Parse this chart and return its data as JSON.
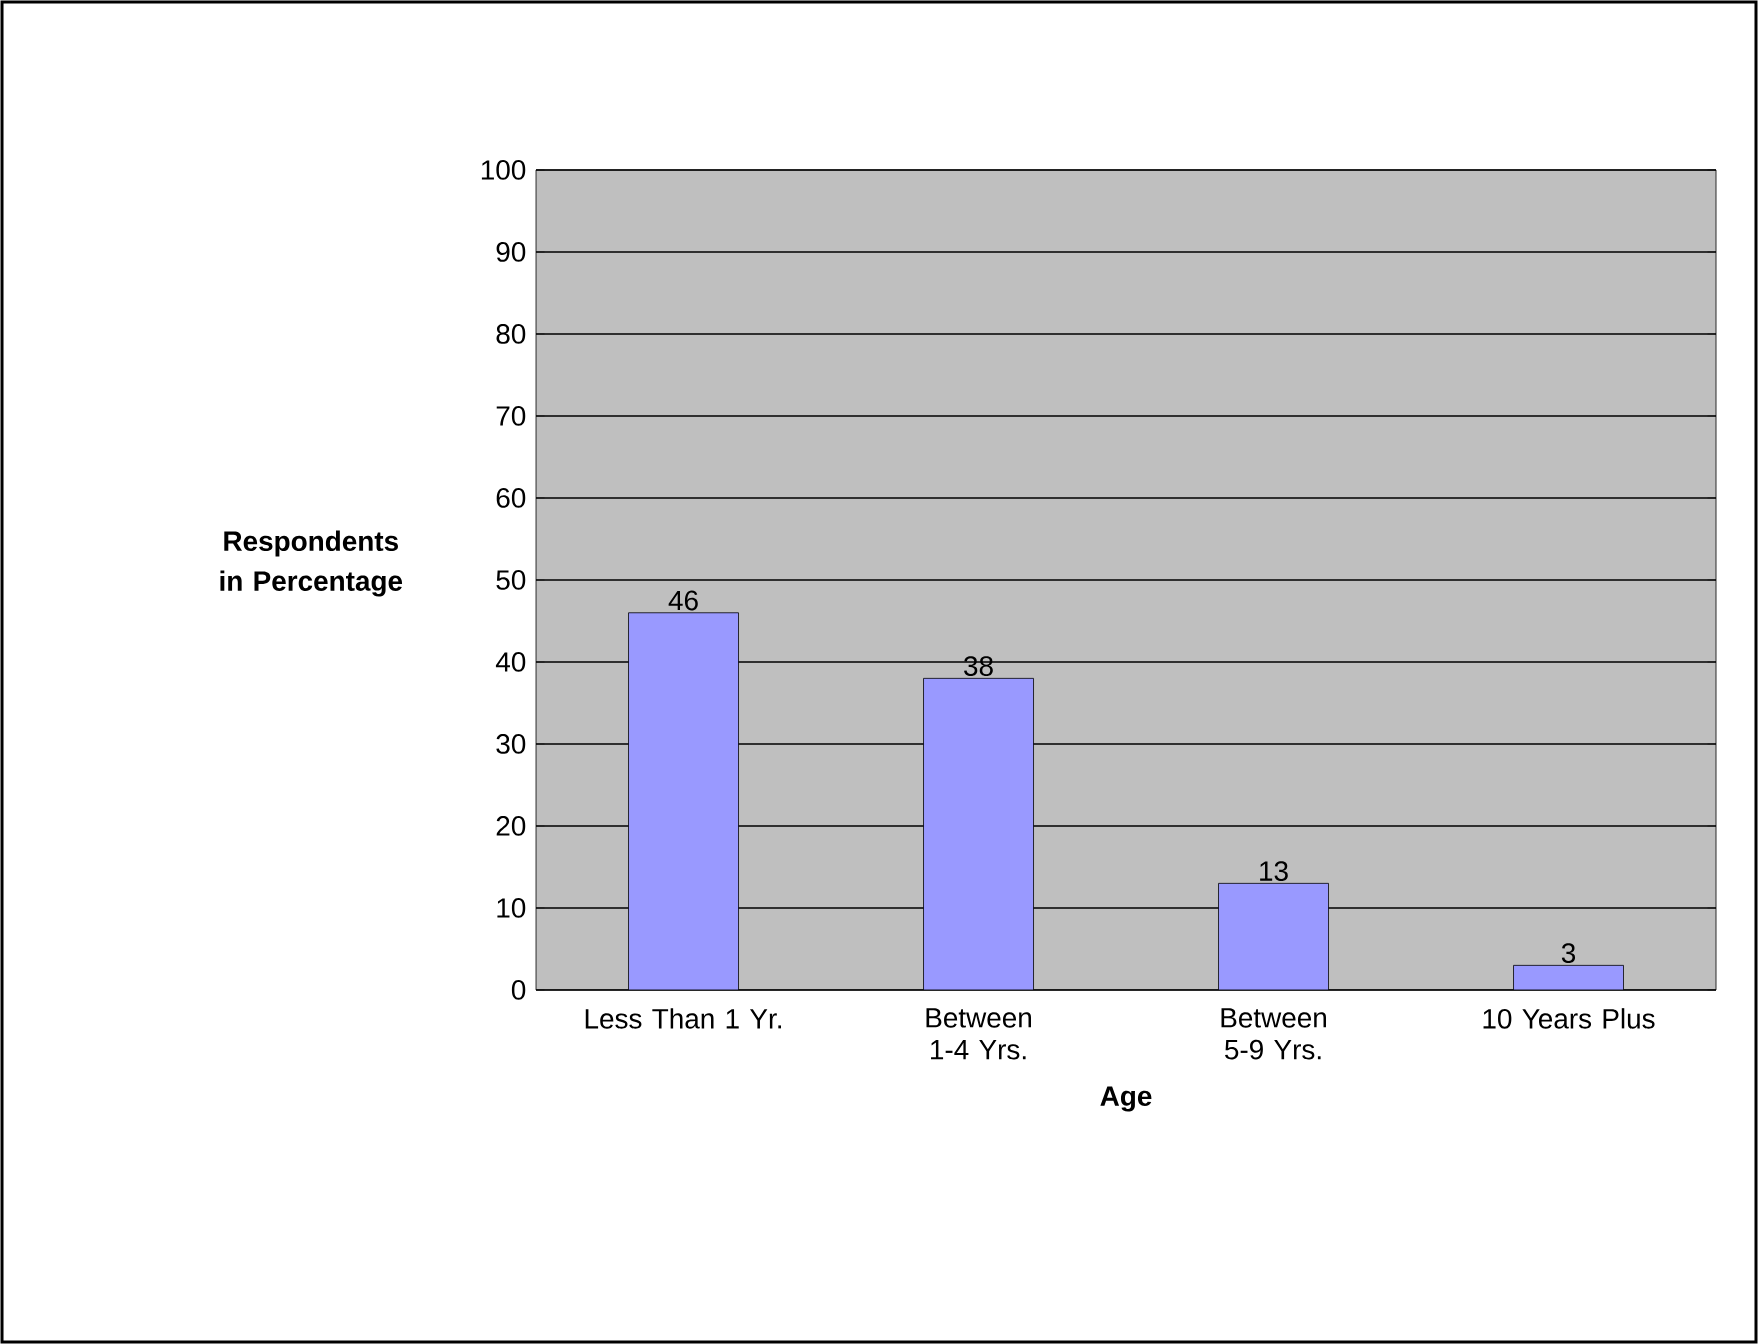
{
  "chart_data": {
    "type": "bar",
    "xlabel": "Age",
    "ylabel": "Respondents in Percentage",
    "categories": [
      "Less Than 1 Yr.",
      "Between 1-4 Yrs.",
      "Between 5-9 Yrs.",
      "10 Years Plus"
    ],
    "values": [
      46,
      38,
      13,
      3
    ],
    "color": "#9999ff",
    "data_labels": true,
    "ylim": [
      0,
      100
    ],
    "yticks": [
      0,
      10,
      20,
      30,
      40,
      50,
      60,
      70,
      80,
      90,
      100
    ],
    "grid": "y"
  }
}
